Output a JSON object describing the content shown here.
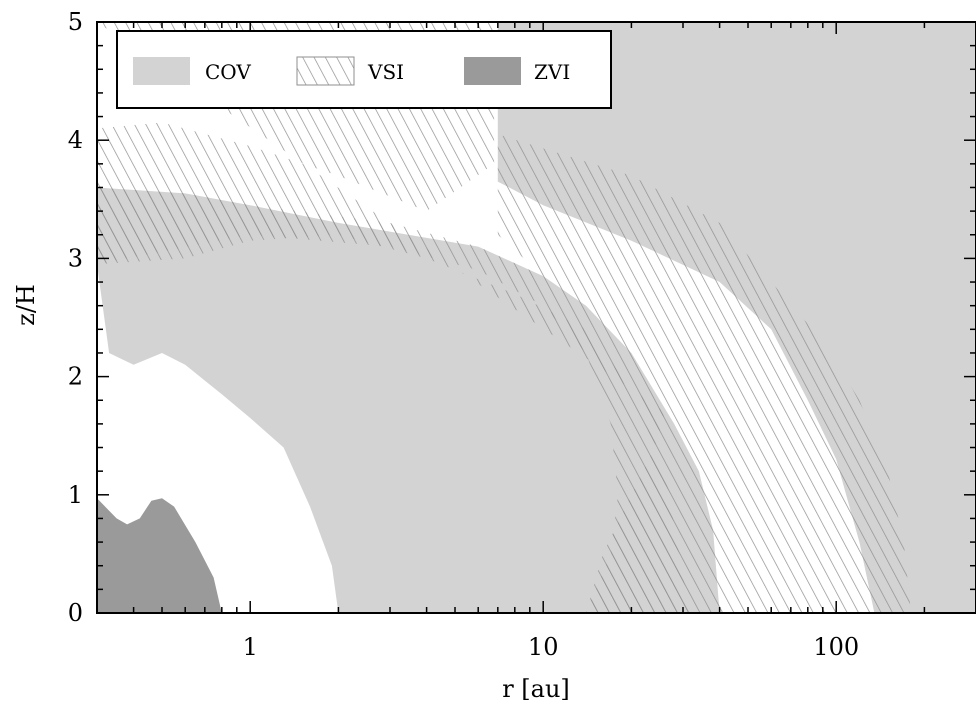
{
  "chart_data": {
    "type": "area",
    "xlabel": "r [au]",
    "ylabel": "z/H",
    "xscale": "log",
    "xlim": [
      0.3,
      300
    ],
    "ylim": [
      0,
      5
    ],
    "x_ticks": [
      {
        "value": 1,
        "label": "1"
      },
      {
        "value": 10,
        "label": "10"
      },
      {
        "value": 100,
        "label": "100"
      }
    ],
    "y_ticks": [
      {
        "value": 0,
        "label": "0"
      },
      {
        "value": 1,
        "label": "1"
      },
      {
        "value": 2,
        "label": "2"
      },
      {
        "value": 3,
        "label": "3"
      },
      {
        "value": 4,
        "label": "4"
      },
      {
        "value": 5,
        "label": "5"
      }
    ],
    "legend": {
      "placement": "top-left",
      "entries": [
        {
          "name": "COV",
          "style": "solid",
          "color": "#d3d3d3"
        },
        {
          "name": "VSI",
          "style": "hatched",
          "color": "#8f8f8f"
        },
        {
          "name": "ZVI",
          "style": "solid",
          "color": "#9a9a9a"
        }
      ]
    },
    "colors": {
      "cov": "#d3d3d3",
      "zvi": "#9a9a9a",
      "hatch": "#8f8f8f"
    },
    "regions": [
      {
        "name": "COV",
        "id": "cov-inner-lower",
        "fill": "cov",
        "polygon": [
          [
            0.3,
            2.95
          ],
          [
            0.33,
            2.2
          ],
          [
            0.4,
            2.1
          ],
          [
            0.5,
            2.2
          ],
          [
            0.6,
            2.1
          ],
          [
            0.8,
            1.85
          ],
          [
            1.0,
            1.65
          ],
          [
            1.3,
            1.4
          ],
          [
            1.6,
            0.9
          ],
          [
            1.9,
            0.4
          ],
          [
            2.0,
            0.0
          ],
          [
            40,
            0.0
          ],
          [
            38,
            0.7
          ],
          [
            34,
            1.2
          ],
          [
            28,
            1.6
          ],
          [
            20,
            2.2
          ],
          [
            14,
            2.6
          ],
          [
            10,
            2.85
          ],
          [
            6,
            3.1
          ],
          [
            2,
            3.3
          ],
          [
            1,
            3.45
          ],
          [
            0.6,
            3.55
          ],
          [
            0.3,
            3.6
          ]
        ]
      },
      {
        "name": "COV",
        "id": "cov-outer",
        "fill": "cov",
        "polygon": [
          [
            7,
            5.0
          ],
          [
            7,
            3.65
          ],
          [
            10,
            3.45
          ],
          [
            20,
            3.15
          ],
          [
            40,
            2.8
          ],
          [
            60,
            2.4
          ],
          [
            80,
            1.8
          ],
          [
            100,
            1.3
          ],
          [
            120,
            0.6
          ],
          [
            135,
            0.0
          ],
          [
            300,
            0.0
          ],
          [
            300,
            5.0
          ]
        ]
      },
      {
        "name": "ZVI",
        "id": "zvi-core",
        "fill": "zvi",
        "polygon": [
          [
            0.3,
            0.97
          ],
          [
            0.35,
            0.8
          ],
          [
            0.38,
            0.75
          ],
          [
            0.42,
            0.8
          ],
          [
            0.46,
            0.95
          ],
          [
            0.5,
            0.97
          ],
          [
            0.55,
            0.9
          ],
          [
            0.65,
            0.6
          ],
          [
            0.75,
            0.3
          ],
          [
            0.8,
            0.0
          ],
          [
            0.3,
            0.0
          ]
        ]
      },
      {
        "name": "VSI",
        "id": "vsi-inner",
        "fill": "hatch",
        "polygon": [
          [
            0.3,
            5.0
          ],
          [
            6.8,
            5.0
          ],
          [
            6.8,
            3.8
          ],
          [
            4,
            3.4
          ],
          [
            2,
            3.7
          ],
          [
            1,
            3.95
          ],
          [
            0.5,
            4.15
          ],
          [
            0.3,
            4.1
          ],
          [
            0.3,
            2.95
          ],
          [
            0.6,
            3.0
          ],
          [
            1,
            3.15
          ],
          [
            2,
            3.2
          ],
          [
            4,
            3.0
          ],
          [
            8,
            2.7
          ],
          [
            14,
            2.4
          ],
          [
            20,
            1.9
          ],
          [
            26,
            1.2
          ],
          [
            30,
            0.3
          ],
          [
            32,
            0.0
          ],
          [
            14,
            0.0
          ],
          [
            16,
            0.5
          ],
          [
            20,
            1.0
          ],
          [
            24,
            1.4
          ],
          [
            26,
            1.7
          ]
        ]
      },
      {
        "name": "VSI",
        "id": "vsi-middle",
        "fill": "hatch",
        "polygon": [
          [
            14,
            0.0
          ],
          [
            40,
            0.0
          ],
          [
            38,
            0.7
          ],
          [
            34,
            1.2
          ],
          [
            28,
            1.6
          ],
          [
            20,
            2.2
          ],
          [
            14,
            2.6
          ],
          [
            10,
            2.85
          ],
          [
            6,
            3.1
          ],
          [
            3,
            3.3
          ],
          [
            1,
            3.45
          ],
          [
            0.6,
            3.55
          ],
          [
            0.3,
            3.6
          ],
          [
            0.3,
            2.95
          ],
          [
            1,
            3.2
          ],
          [
            3,
            3.1
          ],
          [
            6,
            2.9
          ],
          [
            10,
            2.6
          ],
          [
            14,
            2.2
          ],
          [
            17,
            1.6
          ],
          [
            18,
            1.0
          ],
          [
            17,
            0.5
          ]
        ]
      },
      {
        "name": "VSI",
        "id": "vsi-outer",
        "fill": "hatch",
        "polygon": [
          [
            7,
            4.05
          ],
          [
            20,
            3.7
          ],
          [
            40,
            3.3
          ],
          [
            60,
            2.8
          ],
          [
            90,
            2.3
          ],
          [
            120,
            1.8
          ],
          [
            150,
            1.2
          ],
          [
            170,
            0.6
          ],
          [
            180,
            0.0
          ],
          [
            135,
            0.0
          ],
          [
            120,
            0.6
          ],
          [
            100,
            1.3
          ],
          [
            80,
            1.8
          ],
          [
            60,
            2.4
          ],
          [
            40,
            2.8
          ],
          [
            20,
            3.15
          ],
          [
            10,
            3.45
          ],
          [
            7,
            3.65
          ]
        ]
      },
      {
        "name": "VSI",
        "id": "vsi-white-band",
        "fill": "hatch",
        "polygon": [
          [
            7,
            3.65
          ],
          [
            10,
            3.45
          ],
          [
            20,
            3.15
          ],
          [
            40,
            2.8
          ],
          [
            60,
            2.4
          ],
          [
            80,
            1.8
          ],
          [
            100,
            1.3
          ],
          [
            120,
            0.6
          ],
          [
            135,
            0.0
          ],
          [
            40,
            0.0
          ],
          [
            38,
            0.7
          ],
          [
            34,
            1.2
          ],
          [
            28,
            1.6
          ],
          [
            20,
            2.2
          ],
          [
            14,
            2.6
          ],
          [
            10,
            2.85
          ],
          [
            7,
            3.2
          ]
        ]
      }
    ]
  }
}
